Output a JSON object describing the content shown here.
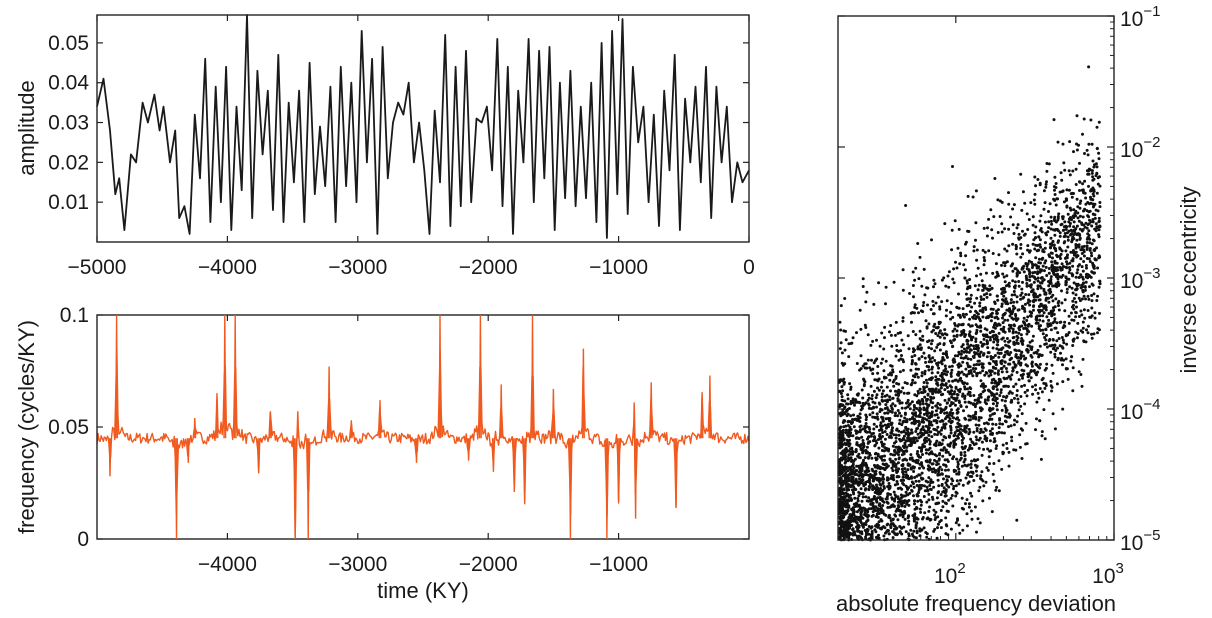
{
  "chart_data": [
    {
      "type": "line",
      "ylabel": "amplitude",
      "xlabel": "",
      "xlim": [
        -5000,
        0
      ],
      "ylim": [
        0.0,
        0.057
      ],
      "xticks": [
        "-5000",
        "-4000",
        "-3000",
        "-2000",
        "-1000",
        "0"
      ],
      "yticks": [
        "0.01",
        "0.02",
        "0.03",
        "0.04",
        "0.05"
      ],
      "line_color": "#1a1a1a",
      "series": [
        {
          "x": [
            -5000,
            -4950,
            -4900,
            -4860,
            -4830,
            -4790,
            -4740,
            -4700,
            -4650,
            -4610,
            -4560,
            -4520,
            -4490,
            -4440,
            -4400,
            -4370,
            -4330,
            -4290,
            -4250,
            -4210,
            -4170,
            -4130,
            -4090,
            -4050,
            -4010,
            -3970,
            -3930,
            -3890,
            -3850,
            -3810,
            -3770,
            -3730,
            -3690,
            -3650,
            -3610,
            -3570,
            -3530,
            -3490,
            -3450,
            -3410,
            -3370,
            -3330,
            -3290,
            -3250,
            -3210,
            -3170,
            -3130,
            -3090,
            -3050,
            -3010,
            -2970,
            -2930,
            -2890,
            -2850,
            -2810,
            -2770,
            -2730,
            -2690,
            -2650,
            -2610,
            -2570,
            -2530,
            -2490,
            -2450,
            -2410,
            -2370,
            -2330,
            -2290,
            -2250,
            -2210,
            -2170,
            -2130,
            -2090,
            -2050,
            -2010,
            -1970,
            -1930,
            -1890,
            -1850,
            -1810,
            -1770,
            -1730,
            -1690,
            -1650,
            -1610,
            -1570,
            -1530,
            -1490,
            -1450,
            -1410,
            -1370,
            -1330,
            -1290,
            -1250,
            -1210,
            -1170,
            -1130,
            -1090,
            -1050,
            -1010,
            -970,
            -930,
            -890,
            -850,
            -810,
            -770,
            -730,
            -690,
            -650,
            -610,
            -570,
            -530,
            -490,
            -450,
            -410,
            -370,
            -330,
            -290,
            -250,
            -210,
            -170,
            -130,
            -90,
            -50,
            0
          ],
          "values": [
            0.034,
            0.041,
            0.028,
            0.012,
            0.016,
            0.003,
            0.022,
            0.02,
            0.035,
            0.03,
            0.037,
            0.028,
            0.034,
            0.02,
            0.028,
            0.006,
            0.009,
            0.002,
            0.032,
            0.016,
            0.046,
            0.005,
            0.039,
            0.01,
            0.044,
            0.003,
            0.034,
            0.013,
            0.057,
            0.006,
            0.043,
            0.022,
            0.038,
            0.008,
            0.047,
            0.005,
            0.035,
            0.015,
            0.038,
            0.005,
            0.045,
            0.012,
            0.029,
            0.014,
            0.039,
            0.005,
            0.044,
            0.014,
            0.04,
            0.01,
            0.053,
            0.02,
            0.046,
            0.002,
            0.049,
            0.016,
            0.03,
            0.035,
            0.032,
            0.04,
            0.02,
            0.03,
            0.018,
            0.002,
            0.033,
            0.015,
            0.052,
            0.004,
            0.044,
            0.009,
            0.048,
            0.01,
            0.031,
            0.03,
            0.034,
            0.018,
            0.051,
            0.009,
            0.044,
            0.002,
            0.038,
            0.02,
            0.051,
            0.01,
            0.048,
            0.016,
            0.049,
            0.003,
            0.04,
            0.011,
            0.043,
            0.009,
            0.034,
            0.011,
            0.04,
            0.005,
            0.05,
            0.001,
            0.053,
            0.012,
            0.056,
            0.007,
            0.044,
            0.025,
            0.034,
            0.01,
            0.032,
            0.004,
            0.038,
            0.018,
            0.047,
            0.003,
            0.036,
            0.02,
            0.039,
            0.015,
            0.044,
            0.006,
            0.039,
            0.02,
            0.034,
            0.01,
            0.02,
            0.015,
            0.018
          ]
        }
      ]
    },
    {
      "type": "line",
      "ylabel": "frequency (cycles/KY)",
      "xlabel": "time (KY)",
      "xlim": [
        -5000,
        0
      ],
      "ylim": [
        0.0,
        0.1
      ],
      "xticks": [
        "-4000",
        "-3000",
        "-2000",
        "-1000"
      ],
      "yticks": [
        "0",
        "0.05",
        "0.1"
      ],
      "line_color": "#f05a1e",
      "series": [
        {
          "baseline": 0.045,
          "spikes": [
            {
              "x": -4850,
              "y": 0.1
            },
            {
              "x": -4020,
              "y": 0.1
            },
            {
              "x": -3940,
              "y": 0.1
            },
            {
              "x": -2370,
              "y": 0.1
            },
            {
              "x": -2060,
              "y": 0.1
            },
            {
              "x": -1660,
              "y": 0.1
            },
            {
              "x": -1270,
              "y": 0.085
            },
            {
              "x": -3220,
              "y": 0.077
            },
            {
              "x": -1900,
              "y": 0.069
            },
            {
              "x": -1500,
              "y": 0.067
            },
            {
              "x": -4080,
              "y": 0.062
            },
            {
              "x": -2830,
              "y": 0.062
            },
            {
              "x": -3670,
              "y": 0.057
            },
            {
              "x": -3460,
              "y": 0.057
            },
            {
              "x": -880,
              "y": 0.061
            },
            {
              "x": -750,
              "y": 0.07
            },
            {
              "x": -300,
              "y": 0.073
            },
            {
              "x": -360,
              "y": 0.063
            },
            {
              "x": -4250,
              "y": 0.054
            },
            {
              "x": -3050,
              "y": 0.053
            }
          ],
          "dips": [
            {
              "x": -4390,
              "y": 0.0
            },
            {
              "x": -3480,
              "y": 0.0
            },
            {
              "x": -3380,
              "y": 0.0
            },
            {
              "x": -1370,
              "y": 0.0
            },
            {
              "x": -1090,
              "y": 0.0
            },
            {
              "x": -870,
              "y": 0.009
            },
            {
              "x": -1000,
              "y": 0.017
            },
            {
              "x": -1720,
              "y": 0.017
            },
            {
              "x": -560,
              "y": 0.014
            },
            {
              "x": -4900,
              "y": 0.028
            },
            {
              "x": -3760,
              "y": 0.03
            },
            {
              "x": -1800,
              "y": 0.021
            },
            {
              "x": -1960,
              "y": 0.03
            },
            {
              "x": -4300,
              "y": 0.034
            },
            {
              "x": -2550,
              "y": 0.034
            },
            {
              "x": -2150,
              "y": 0.035
            }
          ]
        }
      ]
    },
    {
      "type": "scatter",
      "xlabel": "absolute frequency deviation",
      "ylabel": "inverse eccentricity",
      "xscale": "log",
      "yscale": "log",
      "xlim": [
        18,
        1000
      ],
      "ylim": [
        1e-05,
        0.1
      ],
      "xticks": [
        "10^2",
        "10^3"
      ],
      "yticks": [
        "10^-5",
        "10^-4",
        "10^-3",
        "10^-2",
        "10^-1"
      ],
      "point_color": "#111111",
      "trend": {
        "slope_log": 1.5,
        "intercept_log": -4.55,
        "spread_log": 0.55,
        "n_points": 4500
      }
    }
  ]
}
